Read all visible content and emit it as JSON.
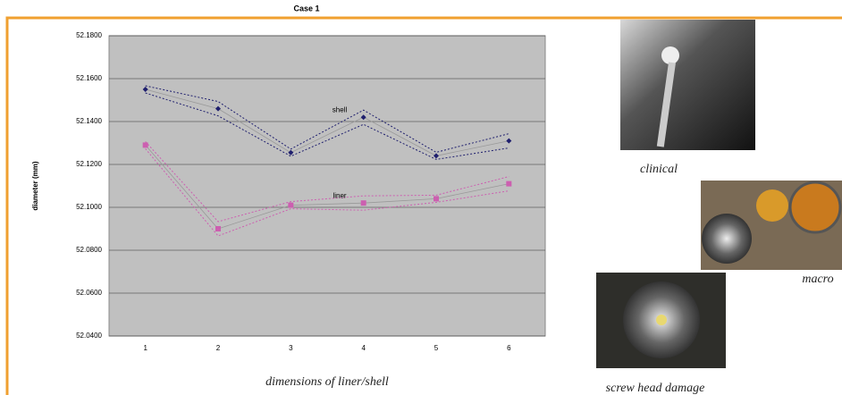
{
  "chart_data": {
    "type": "line",
    "title": "Case 1",
    "x_label": "dimensions of liner/shell",
    "y_label": "diameter (mm)",
    "categories": [
      "1",
      "2",
      "3",
      "4",
      "5",
      "6"
    ],
    "series": [
      {
        "name": "shell",
        "color": "#1f1f6e",
        "marker": "diamond",
        "values": [
          52.155,
          52.146,
          52.1255,
          52.142,
          52.124,
          52.131
        ]
      },
      {
        "name": "liner",
        "color": "#cc5fb0",
        "marker": "square",
        "values": [
          52.129,
          52.09,
          52.101,
          52.102,
          52.104,
          52.111
        ]
      }
    ],
    "ylim": [
      52.04,
      52.18
    ],
    "yticks": [
      {
        "value": 52.04,
        "label": "52.0400"
      },
      {
        "value": 52.06,
        "label": "52.0600"
      },
      {
        "value": 52.08,
        "label": "52.0800"
      },
      {
        "value": 52.1,
        "label": "52.1000"
      },
      {
        "value": 52.12,
        "label": "52.1200"
      },
      {
        "value": 52.14,
        "label": "52.1400"
      },
      {
        "value": 52.16,
        "label": "52.1600"
      },
      {
        "value": 52.18,
        "label": "52.1800"
      }
    ],
    "grid": true
  },
  "images": [
    {
      "caption": "clinical"
    },
    {
      "caption": "macro"
    },
    {
      "caption": "screw head damage"
    }
  ]
}
